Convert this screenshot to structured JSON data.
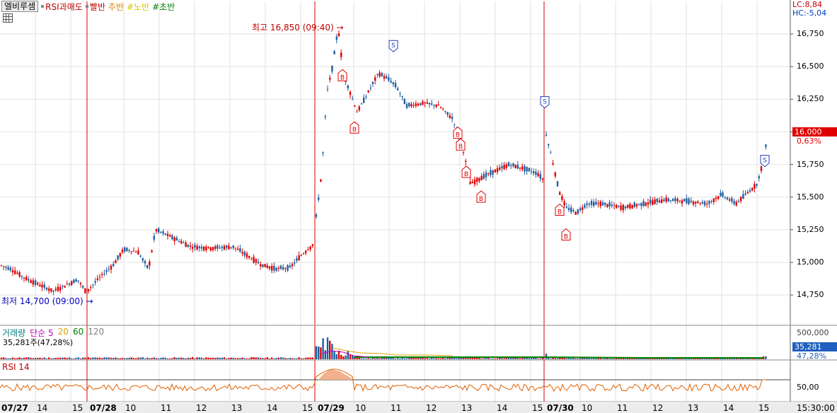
{
  "toolbar": {
    "selector_label": "엘비루셈",
    "indicators": [
      {
        "label": "RSI과매도",
        "color": "#c00000"
      },
      {
        "label": "빨반",
        "color": "#c00000"
      },
      {
        "label": "주반",
        "color": "#e08000"
      },
      {
        "label": "#노반",
        "color": "#e0d000"
      },
      {
        "label": "#초반",
        "color": "#008000"
      }
    ]
  },
  "right_info": {
    "lc": "LC:8,84",
    "hc": "HC:-5,04"
  },
  "price_panel": {
    "y_ticks": [
      "16,750",
      "16,500",
      "16,250",
      "16,000",
      "15,750",
      "15,500",
      "15,250",
      "15,000",
      "14,750"
    ],
    "current_price": "16,000",
    "current_change": "0,63%",
    "high_annotation": "최고 16,850 (09:40)",
    "low_annotation": "최저 14,700 (09:00)"
  },
  "volume_panel": {
    "label_title": "거래량",
    "ma_labels": [
      {
        "label": "단순 5",
        "color": "#c000c0"
      },
      {
        "label": "20",
        "color": "#e0a000"
      },
      {
        "label": "60",
        "color": "#008000"
      },
      {
        "label": "120",
        "color": "#808080"
      }
    ],
    "summary": "35,281주(47,28%)",
    "axis_label": "500,000",
    "current_volume": "35,281",
    "current_ratio": "47,28%"
  },
  "rsi_panel": {
    "label": "RSI 14",
    "axis_label": "50,00"
  },
  "x_axis": {
    "labels": [
      "07/27",
      "14",
      "15",
      "07/28",
      "10",
      "11",
      "12",
      "13",
      "14",
      "15",
      "07/29",
      "10",
      "11",
      "12",
      "13",
      "14",
      "15",
      "07/30",
      "10",
      "11",
      "12",
      "13",
      "14",
      "15"
    ],
    "time_label": "15:30:00"
  },
  "chart_data": {
    "type": "candlestick",
    "ylim": [
      14600,
      16900
    ],
    "day_separators": [
      "07/28",
      "07/29",
      "07/30"
    ],
    "high": {
      "value": 16850,
      "time": "07/29 09:40"
    },
    "low": {
      "value": 14700,
      "time": "07/27 09:00"
    },
    "segments": [
      {
        "day": "07/27",
        "x_start": 0,
        "x_end": 123,
        "points": [
          [
            0,
            14980
          ],
          [
            15,
            14950
          ],
          [
            35,
            14880
          ],
          [
            55,
            14830
          ],
          [
            75,
            14780
          ],
          [
            95,
            14830
          ],
          [
            110,
            14870
          ],
          [
            123,
            14760
          ]
        ]
      },
      {
        "day": "07/28",
        "x_start": 123,
        "x_end": 445,
        "points": [
          [
            123,
            14780
          ],
          [
            140,
            14880
          ],
          [
            160,
            14980
          ],
          [
            175,
            15100
          ],
          [
            195,
            15080
          ],
          [
            210,
            14950
          ],
          [
            220,
            15250
          ],
          [
            240,
            15200
          ],
          [
            270,
            15120
          ],
          [
            300,
            15110
          ],
          [
            330,
            15120
          ],
          [
            350,
            15050
          ],
          [
            370,
            14980
          ],
          [
            390,
            14950
          ],
          [
            410,
            14960
          ],
          [
            425,
            15050
          ],
          [
            445,
            15150
          ]
        ]
      },
      {
        "day": "07/29",
        "x_start": 445,
        "x_end": 770,
        "points": [
          [
            447,
            15350
          ],
          [
            455,
            15700
          ],
          [
            462,
            16300
          ],
          [
            470,
            16500
          ],
          [
            478,
            16800
          ],
          [
            485,
            16450
          ],
          [
            495,
            16300
          ],
          [
            505,
            16150
          ],
          [
            520,
            16300
          ],
          [
            535,
            16450
          ],
          [
            550,
            16400
          ],
          [
            560,
            16350
          ],
          [
            575,
            16200
          ],
          [
            600,
            16220
          ],
          [
            620,
            16200
          ],
          [
            640,
            16100
          ],
          [
            655,
            15850
          ],
          [
            665,
            15600
          ],
          [
            680,
            15650
          ],
          [
            700,
            15700
          ],
          [
            720,
            15750
          ],
          [
            740,
            15720
          ],
          [
            760,
            15680
          ],
          [
            770,
            15620
          ]
        ]
      },
      {
        "day": "07/30",
        "x_start": 770,
        "x_end": 1085,
        "points": [
          [
            771,
            16000
          ],
          [
            780,
            15800
          ],
          [
            790,
            15550
          ],
          [
            800,
            15420
          ],
          [
            815,
            15380
          ],
          [
            830,
            15450
          ],
          [
            850,
            15450
          ],
          [
            880,
            15420
          ],
          [
            910,
            15450
          ],
          [
            940,
            15480
          ],
          [
            970,
            15470
          ],
          [
            1000,
            15450
          ],
          [
            1020,
            15520
          ],
          [
            1040,
            15450
          ],
          [
            1060,
            15550
          ],
          [
            1070,
            15600
          ],
          [
            1080,
            15800
          ],
          [
            1085,
            16000
          ]
        ]
      }
    ],
    "signals": [
      {
        "type": "B",
        "x": 484,
        "y": 16450
      },
      {
        "type": "B",
        "x": 501,
        "y": 16050
      },
      {
        "type": "S",
        "x": 556,
        "y": 16700
      },
      {
        "type": "B",
        "x": 647,
        "y": 16010
      },
      {
        "type": "B",
        "x": 651,
        "y": 15920
      },
      {
        "type": "B",
        "x": 659,
        "y": 15710
      },
      {
        "type": "B",
        "x": 680,
        "y": 15520
      },
      {
        "type": "S",
        "x": 770,
        "y": 16270
      },
      {
        "type": "B",
        "x": 791,
        "y": 15420
      },
      {
        "type": "B",
        "x": 800,
        "y": 15230
      },
      {
        "type": "S",
        "x": 1081,
        "y": 15820
      }
    ],
    "rsi_reference": 50
  }
}
